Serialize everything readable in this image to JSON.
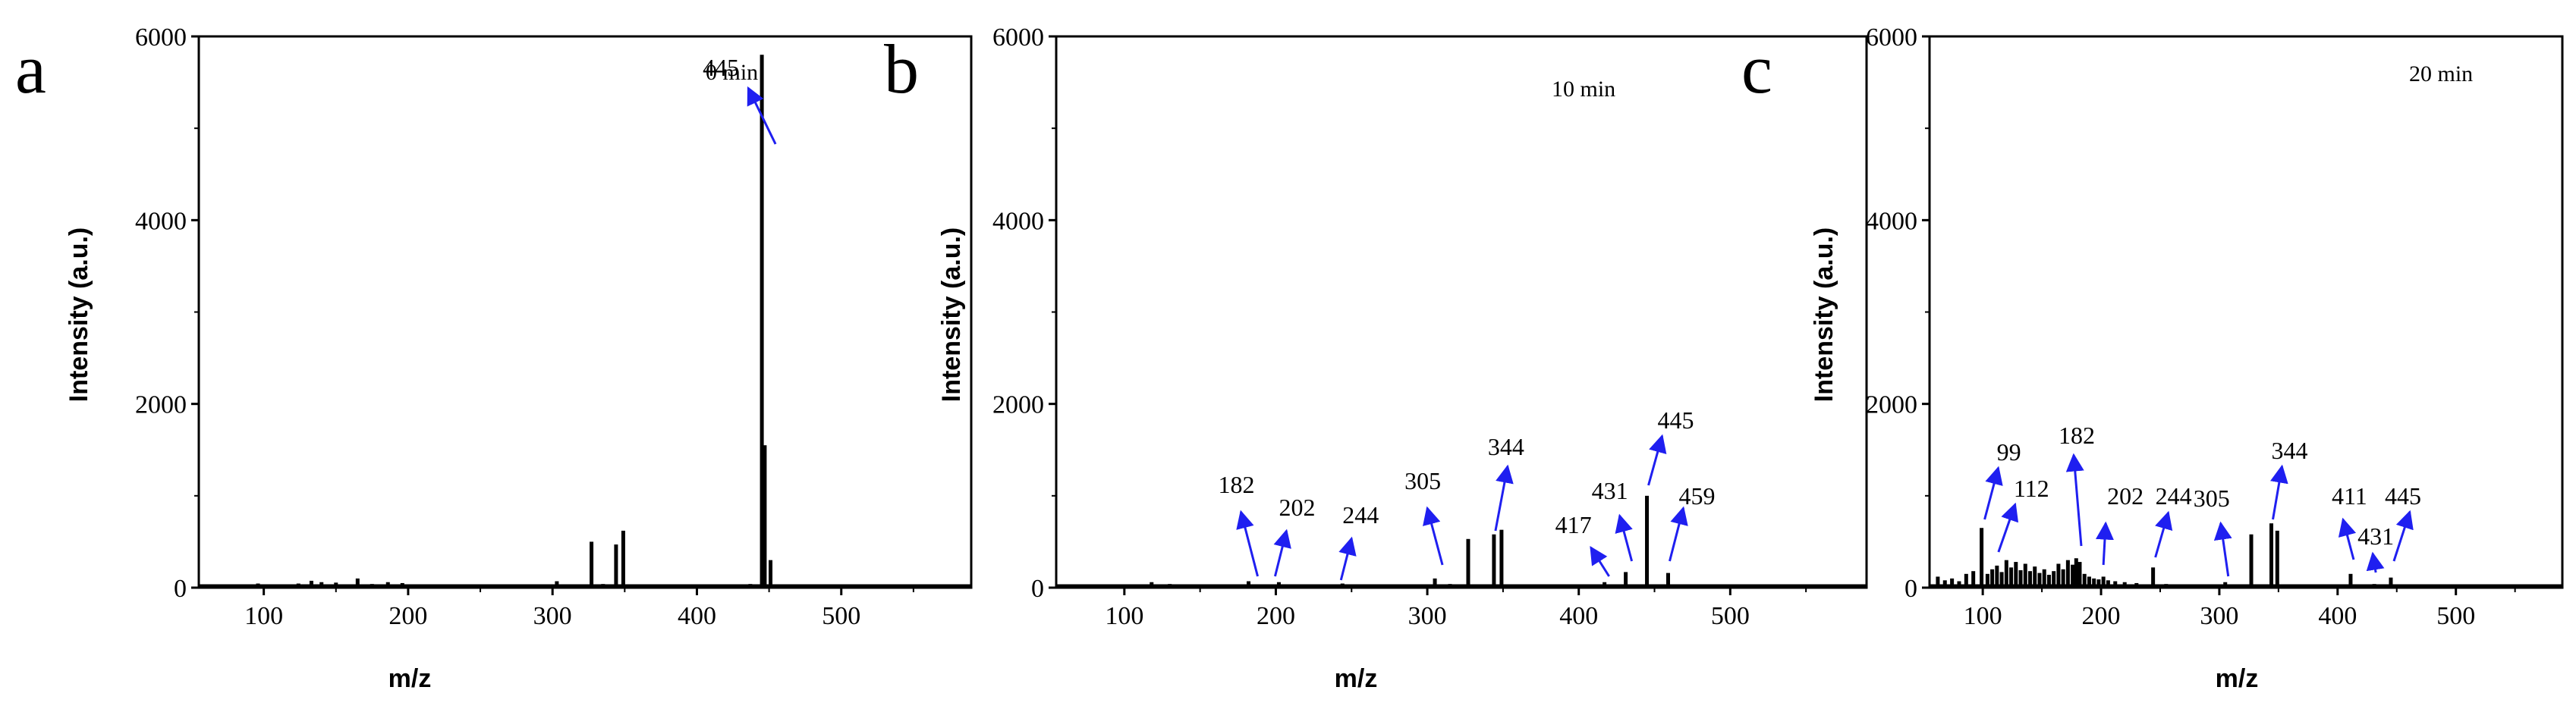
{
  "colors": {
    "axis": "#000000",
    "bar": "#000000",
    "arrow": "#1f1ff0"
  },
  "chart_data": [
    {
      "type": "bar",
      "panel": "a",
      "time_label": "0 min",
      "xlabel": "m/z",
      "ylabel": "Intensity (a.u.)",
      "xlim": [
        55,
        590
      ],
      "ylim": [
        0,
        6000
      ],
      "xticks": [
        100,
        200,
        300,
        400,
        500
      ],
      "yticks": [
        0,
        2000,
        4000,
        6000
      ],
      "peaks": [
        {
          "x": 72,
          "y": 25
        },
        {
          "x": 85,
          "y": 35
        },
        {
          "x": 96,
          "y": 45
        },
        {
          "x": 110,
          "y": 30
        },
        {
          "x": 124,
          "y": 45
        },
        {
          "x": 133,
          "y": 75
        },
        {
          "x": 140,
          "y": 60
        },
        {
          "x": 150,
          "y": 55
        },
        {
          "x": 165,
          "y": 100
        },
        {
          "x": 175,
          "y": 40
        },
        {
          "x": 186,
          "y": 60
        },
        {
          "x": 196,
          "y": 50
        },
        {
          "x": 210,
          "y": 35
        },
        {
          "x": 228,
          "y": 25
        },
        {
          "x": 250,
          "y": 20
        },
        {
          "x": 270,
          "y": 25
        },
        {
          "x": 290,
          "y": 30
        },
        {
          "x": 303,
          "y": 70
        },
        {
          "x": 313,
          "y": 30
        },
        {
          "x": 327,
          "y": 500
        },
        {
          "x": 335,
          "y": 40
        },
        {
          "x": 344,
          "y": 470
        },
        {
          "x": 349,
          "y": 620
        },
        {
          "x": 362,
          "y": 25
        },
        {
          "x": 390,
          "y": 25
        },
        {
          "x": 420,
          "y": 30
        },
        {
          "x": 437,
          "y": 40
        },
        {
          "x": 445,
          "y": 5800
        },
        {
          "x": 447,
          "y": 1550
        },
        {
          "x": 451,
          "y": 300
        },
        {
          "x": 470,
          "y": 30
        },
        {
          "x": 490,
          "y": 25
        },
        {
          "x": 520,
          "y": 20
        },
        {
          "x": 550,
          "y": 15
        }
      ],
      "annotations": [
        {
          "label": "445",
          "x": 445,
          "y": 5800
        }
      ]
    },
    {
      "type": "bar",
      "panel": "b",
      "time_label": "10 min",
      "xlabel": "m/z",
      "ylabel": "Intensity (a.u.)",
      "xlim": [
        55,
        590
      ],
      "ylim": [
        0,
        6000
      ],
      "xticks": [
        100,
        200,
        300,
        400,
        500
      ],
      "yticks": [
        0,
        2000,
        4000,
        6000
      ],
      "peaks": [
        {
          "x": 75,
          "y": 25
        },
        {
          "x": 95,
          "y": 30
        },
        {
          "x": 118,
          "y": 60
        },
        {
          "x": 130,
          "y": 40
        },
        {
          "x": 145,
          "y": 30
        },
        {
          "x": 160,
          "y": 35
        },
        {
          "x": 182,
          "y": 70
        },
        {
          "x": 195,
          "y": 30
        },
        {
          "x": 202,
          "y": 60
        },
        {
          "x": 215,
          "y": 30
        },
        {
          "x": 230,
          "y": 25
        },
        {
          "x": 244,
          "y": 45
        },
        {
          "x": 260,
          "y": 25
        },
        {
          "x": 280,
          "y": 30
        },
        {
          "x": 305,
          "y": 100
        },
        {
          "x": 315,
          "y": 40
        },
        {
          "x": 327,
          "y": 530
        },
        {
          "x": 344,
          "y": 580
        },
        {
          "x": 349,
          "y": 630
        },
        {
          "x": 360,
          "y": 30
        },
        {
          "x": 380,
          "y": 25
        },
        {
          "x": 400,
          "y": 30
        },
        {
          "x": 417,
          "y": 60
        },
        {
          "x": 431,
          "y": 170
        },
        {
          "x": 445,
          "y": 1000
        },
        {
          "x": 459,
          "y": 160
        },
        {
          "x": 470,
          "y": 30
        },
        {
          "x": 500,
          "y": 20
        },
        {
          "x": 540,
          "y": 15
        }
      ],
      "annotations": [
        {
          "label": "182",
          "x": 182,
          "y": 70
        },
        {
          "label": "202",
          "x": 202,
          "y": 60
        },
        {
          "label": "244",
          "x": 244,
          "y": 45
        },
        {
          "label": "305",
          "x": 305,
          "y": 100
        },
        {
          "label": "344",
          "x": 344,
          "y": 580
        },
        {
          "label": "417",
          "x": 417,
          "y": 60
        },
        {
          "label": "431",
          "x": 431,
          "y": 170
        },
        {
          "label": "445",
          "x": 445,
          "y": 1000
        },
        {
          "label": "459",
          "x": 459,
          "y": 160
        }
      ]
    },
    {
      "type": "bar",
      "panel": "c",
      "time_label": "20 min",
      "xlabel": "m/z",
      "ylabel": "Intensity (a.u.)",
      "xlim": [
        55,
        590
      ],
      "ylim": [
        0,
        6000
      ],
      "xticks": [
        100,
        200,
        300,
        400,
        500
      ],
      "yticks": [
        0,
        2000,
        4000,
        6000
      ],
      "peaks": [
        {
          "x": 62,
          "y": 120
        },
        {
          "x": 68,
          "y": 80
        },
        {
          "x": 74,
          "y": 100
        },
        {
          "x": 80,
          "y": 70
        },
        {
          "x": 86,
          "y": 150
        },
        {
          "x": 92,
          "y": 180
        },
        {
          "x": 99,
          "y": 650
        },
        {
          "x": 104,
          "y": 150
        },
        {
          "x": 108,
          "y": 200
        },
        {
          "x": 112,
          "y": 240
        },
        {
          "x": 116,
          "y": 170
        },
        {
          "x": 120,
          "y": 300
        },
        {
          "x": 124,
          "y": 220
        },
        {
          "x": 128,
          "y": 280
        },
        {
          "x": 132,
          "y": 190
        },
        {
          "x": 136,
          "y": 260
        },
        {
          "x": 140,
          "y": 180
        },
        {
          "x": 144,
          "y": 230
        },
        {
          "x": 148,
          "y": 160
        },
        {
          "x": 152,
          "y": 200
        },
        {
          "x": 156,
          "y": 140
        },
        {
          "x": 160,
          "y": 180
        },
        {
          "x": 164,
          "y": 260
        },
        {
          "x": 168,
          "y": 200
        },
        {
          "x": 172,
          "y": 300
        },
        {
          "x": 176,
          "y": 250
        },
        {
          "x": 179,
          "y": 320
        },
        {
          "x": 182,
          "y": 280
        },
        {
          "x": 186,
          "y": 150
        },
        {
          "x": 190,
          "y": 120
        },
        {
          "x": 194,
          "y": 100
        },
        {
          "x": 198,
          "y": 90
        },
        {
          "x": 202,
          "y": 120
        },
        {
          "x": 206,
          "y": 80
        },
        {
          "x": 212,
          "y": 70
        },
        {
          "x": 220,
          "y": 60
        },
        {
          "x": 230,
          "y": 50
        },
        {
          "x": 244,
          "y": 220
        },
        {
          "x": 255,
          "y": 40
        },
        {
          "x": 270,
          "y": 35
        },
        {
          "x": 290,
          "y": 30
        },
        {
          "x": 305,
          "y": 60
        },
        {
          "x": 315,
          "y": 30
        },
        {
          "x": 327,
          "y": 580
        },
        {
          "x": 344,
          "y": 700
        },
        {
          "x": 349,
          "y": 620
        },
        {
          "x": 365,
          "y": 25
        },
        {
          "x": 390,
          "y": 20
        },
        {
          "x": 411,
          "y": 150
        },
        {
          "x": 431,
          "y": 40
        },
        {
          "x": 445,
          "y": 110
        },
        {
          "x": 470,
          "y": 20
        },
        {
          "x": 510,
          "y": 15
        },
        {
          "x": 550,
          "y": 10
        }
      ],
      "annotations": [
        {
          "label": "99",
          "x": 99,
          "y": 650
        },
        {
          "label": "112",
          "x": 112,
          "y": 240
        },
        {
          "label": "182",
          "x": 182,
          "y": 280
        },
        {
          "label": "202",
          "x": 202,
          "y": 120
        },
        {
          "label": "244",
          "x": 244,
          "y": 220
        },
        {
          "label": "305",
          "x": 305,
          "y": 60
        },
        {
          "label": "344",
          "x": 344,
          "y": 700
        },
        {
          "label": "411",
          "x": 411,
          "y": 150
        },
        {
          "label": "431",
          "x": 431,
          "y": 40
        },
        {
          "label": "445",
          "x": 445,
          "y": 110
        }
      ]
    }
  ]
}
